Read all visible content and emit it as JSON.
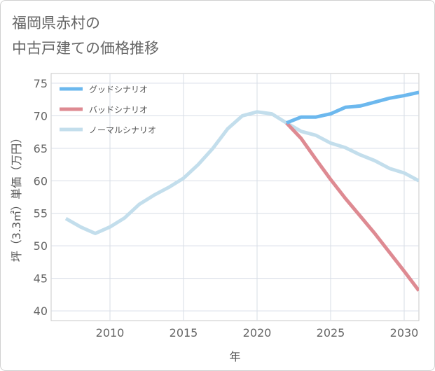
{
  "title_line1": "福岡県赤村の",
  "title_line2": "中古戸建ての価格推移",
  "chart_data": {
    "type": "line",
    "xlabel": "年",
    "ylabel": "坪（3.3㎡）単価（万円）",
    "xlim": [
      2006,
      2031
    ],
    "ylim": [
      38.5,
      76.5
    ],
    "xticks": [
      2010,
      2015,
      2020,
      2025,
      2030
    ],
    "yticks": [
      40,
      45,
      50,
      55,
      60,
      65,
      70,
      75
    ],
    "grid": true,
    "legend_position": "top-left",
    "series": [
      {
        "name": "グッドシナリオ",
        "color": "#6cb8ee",
        "x": [
          2022,
          2023,
          2024,
          2025,
          2026,
          2027,
          2028,
          2029,
          2030,
          2031
        ],
        "y": [
          68.9,
          69.8,
          69.8,
          70.3,
          71.3,
          71.5,
          72.1,
          72.7,
          73.1,
          73.6
        ]
      },
      {
        "name": "バッドシナリオ",
        "color": "#de8a92",
        "x": [
          2022,
          2023,
          2024,
          2025,
          2026,
          2027,
          2028,
          2029,
          2030,
          2031
        ],
        "y": [
          68.9,
          66.5,
          63.3,
          60.2,
          57.3,
          54.6,
          51.9,
          49.0,
          46.1,
          43.1
        ]
      },
      {
        "name": "ノーマルシナリオ",
        "color": "#c3deec",
        "x": [
          2007,
          2008,
          2009,
          2010,
          2011,
          2012,
          2013,
          2014,
          2015,
          2016,
          2017,
          2018,
          2019,
          2020,
          2021,
          2022,
          2023,
          2024,
          2025,
          2026,
          2027,
          2028,
          2029,
          2030,
          2031
        ],
        "y": [
          54.2,
          52.9,
          51.9,
          52.9,
          54.3,
          56.4,
          57.8,
          59.0,
          60.4,
          62.5,
          65.0,
          68.0,
          70.0,
          70.6,
          70.3,
          68.9,
          67.6,
          67.0,
          65.8,
          65.1,
          64.0,
          63.1,
          61.9,
          61.2,
          60.0
        ]
      }
    ]
  }
}
